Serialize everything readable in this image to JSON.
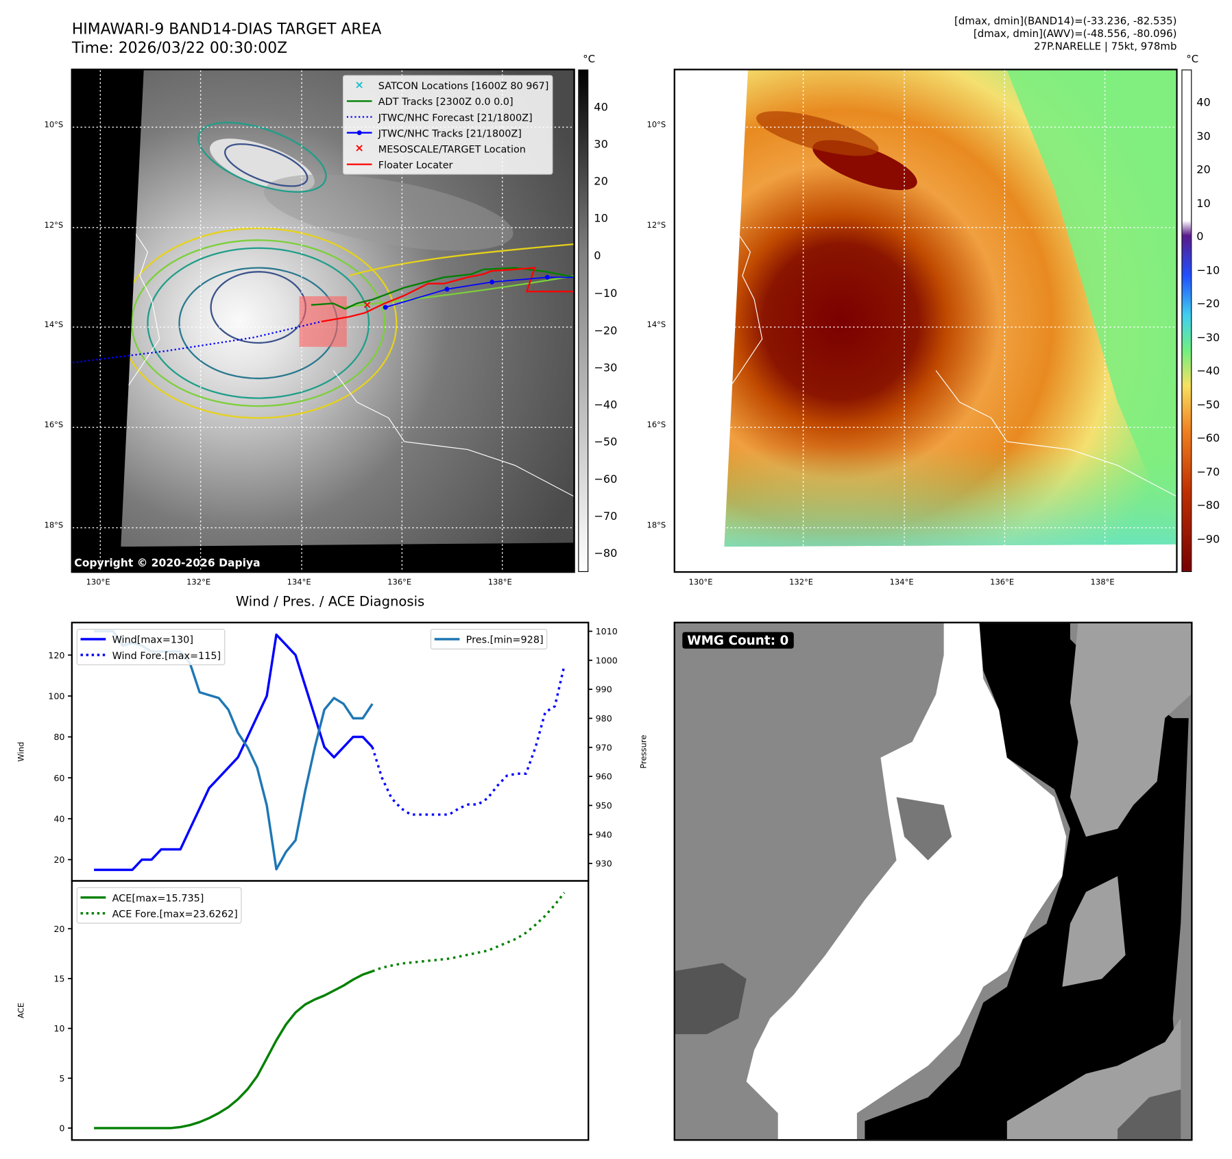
{
  "header": {
    "title": "HIMAWARI-9 BAND14-DIAS TARGET AREA",
    "time": "Time: 2026/03/22 00:30:00Z",
    "info_band14": "[dmax, dmin](BAND14)=(-33.236, -82.535)",
    "info_awv": "[dmax, dmin](AWV)=(-48.556, -80.096)",
    "storm": "27P.NARELLE | 75kt, 978mb"
  },
  "maps": {
    "lat_labels": [
      "10°S",
      "12°S",
      "14°S",
      "16°S",
      "18°S"
    ],
    "lon_labels": [
      "130°E",
      "132°E",
      "134°E",
      "136°E",
      "138°E"
    ],
    "unit": "°C",
    "copyright": "Copyright © 2020-2026 Dapiya",
    "cb1_ticks": [
      "40",
      "30",
      "20",
      "10",
      "0",
      "−10",
      "−20",
      "−30",
      "−40",
      "−50",
      "−60",
      "−70",
      "−80"
    ],
    "cb2_ticks": [
      "40",
      "30",
      "20",
      "10",
      "0",
      "−10",
      "−20",
      "−30",
      "−40",
      "−50",
      "−60",
      "−70",
      "−80",
      "−90"
    ],
    "legend": [
      {
        "label": "SATCON Locations [1600Z 80 967]",
        "icon": "x-marker",
        "color": "#17becf"
      },
      {
        "label": "ADT Tracks [2300Z 0.0 0.0]",
        "icon": "line",
        "color": "#008000"
      },
      {
        "label": "JTWC/NHC Forecast [21/1800Z]",
        "icon": "dotted-line",
        "color": "#0000ff"
      },
      {
        "label": "JTWC/NHC Tracks [21/1800Z]",
        "icon": "line-dot",
        "color": "#0000ff"
      },
      {
        "label": "MESOSCALE/TARGET Location",
        "icon": "x-marker",
        "color": "#ff0000"
      },
      {
        "label": "Floater Locater",
        "icon": "line",
        "color": "#ff0000"
      }
    ],
    "wmg_label": "WMG Count: 0"
  },
  "chart_data": [
    {
      "type": "line",
      "title": "Wind / Pres. / ACE Diagnosis",
      "ylabel": "Wind",
      "ylabel_right": "Pressure",
      "ylim": [
        9.6,
        135.9
      ],
      "ylim_right": [
        924,
        1013
      ],
      "xlim": [
        -2.3,
        51.5
      ],
      "yticks": [
        20,
        40,
        60,
        80,
        100,
        120
      ],
      "yticks_right": [
        930,
        940,
        950,
        960,
        970,
        980,
        990,
        1000,
        1010
      ],
      "series": [
        {
          "name": "Wind[max=130]",
          "color": "#0000ff",
          "style": "solid",
          "x0": 0,
          "values": [
            15,
            15,
            15,
            15,
            15,
            20,
            20,
            25,
            25,
            25,
            35,
            45,
            55,
            60,
            65,
            70,
            80,
            90,
            100,
            130,
            125,
            120,
            105,
            90,
            75,
            70,
            75,
            80,
            80,
            75
          ]
        },
        {
          "name": "Wind Fore.[max=115]",
          "color": "#0000ff",
          "style": "dotted",
          "x0": 29,
          "values": [
            75,
            60,
            50,
            45,
            42,
            42,
            42,
            42,
            42,
            45,
            47,
            47,
            50,
            56,
            61,
            62,
            62,
            75,
            92,
            95,
            115
          ]
        },
        {
          "name": "Pres.[min=928]",
          "color": "#1f77b4",
          "style": "solid",
          "axis": "right",
          "x0": 0,
          "values": [
            1010,
            1010,
            1010,
            1005,
            1006,
            1005,
            1003,
            1003,
            1003,
            1003,
            999,
            989,
            988,
            987,
            983,
            975,
            970,
            963,
            950,
            928,
            934,
            938,
            955,
            970,
            983,
            987,
            985,
            980,
            980,
            985
          ]
        }
      ]
    },
    {
      "type": "line",
      "ylabel": "ACE",
      "ylim": [
        -1.2,
        24.8
      ],
      "xlim": [
        -2.3,
        51.5
      ],
      "yticks": [
        0,
        5,
        10,
        15,
        20
      ],
      "series": [
        {
          "name": "ACE[max=15.735]",
          "color": "#008000",
          "style": "solid",
          "x0": 0,
          "values": [
            0,
            0,
            0,
            0,
            0,
            0,
            0,
            0,
            0,
            0.1,
            0.3,
            0.6,
            1.0,
            1.5,
            2.1,
            2.9,
            3.9,
            5.2,
            7.0,
            8.8,
            10.4,
            11.6,
            12.4,
            12.9,
            13.3,
            13.8,
            14.3,
            14.9,
            15.4,
            15.735
          ]
        },
        {
          "name": "ACE Fore.[max=23.6262]",
          "color": "#008000",
          "style": "dotted",
          "x0": 29,
          "values": [
            15.735,
            16.1,
            16.3,
            16.5,
            16.6,
            16.7,
            16.8,
            16.9,
            17.0,
            17.2,
            17.4,
            17.6,
            17.8,
            18.2,
            18.6,
            19.0,
            19.6,
            20.4,
            21.3,
            22.4,
            23.6262
          ]
        }
      ]
    }
  ]
}
